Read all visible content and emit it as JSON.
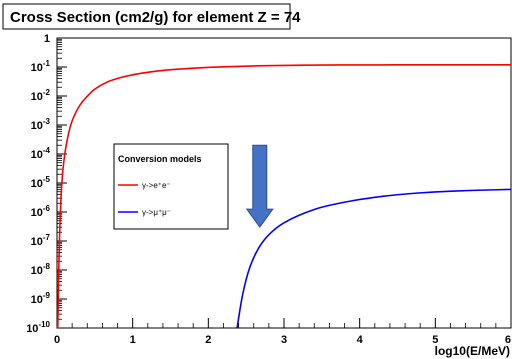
{
  "chart_data": {
    "type": "line",
    "title": "Cross Section (cm2/g) for element Z = 74",
    "xlabel": "log10(E/MeV)",
    "ylabel": "",
    "xlim": [
      0,
      6
    ],
    "ylim_log10": [
      -10,
      0
    ],
    "yscale": "log",
    "grid": false,
    "x_tick_labels": [
      "0",
      "1",
      "2",
      "3",
      "4",
      "5",
      "6"
    ],
    "y_tick_labels": [
      {
        "base": "1",
        "exp": ""
      },
      {
        "base": "10",
        "exp": "-1"
      },
      {
        "base": "10",
        "exp": "-2"
      },
      {
        "base": "10",
        "exp": "-3"
      },
      {
        "base": "10",
        "exp": "-4"
      },
      {
        "base": "10",
        "exp": "-5"
      },
      {
        "base": "10",
        "exp": "-6"
      },
      {
        "base": "10",
        "exp": "-7"
      },
      {
        "base": "10",
        "exp": "-8"
      },
      {
        "base": "10",
        "exp": "-9"
      },
      {
        "base": "10",
        "exp": "-10"
      }
    ],
    "legend": {
      "title": "Conversion models",
      "placement": "center-left",
      "entries": [
        {
          "label": "γ->e⁺e⁻",
          "color": "#ff0000"
        },
        {
          "label": "γ->μ⁺μ⁻",
          "color": "#0000ff"
        }
      ]
    },
    "series": [
      {
        "color": "#ff0000",
        "x": [
          0.01,
          0.03,
          0.06,
          0.1,
          0.15,
          0.2,
          0.3,
          0.4,
          0.5,
          0.7,
          1.0,
          1.3,
          1.6,
          2.0,
          2.5,
          3.0,
          3.5,
          4.0,
          5.0,
          6.0
        ],
        "y": [
          1e-10,
          1e-07,
          1e-05,
          0.0001,
          0.0005,
          0.0015,
          0.005,
          0.01,
          0.018,
          0.035,
          0.055,
          0.072,
          0.085,
          0.098,
          0.108,
          0.114,
          0.117,
          0.118,
          0.119,
          0.119
        ]
      },
      {
        "color": "#0000ff",
        "x": [
          2.38,
          2.45,
          2.55,
          2.7,
          2.9,
          3.1,
          3.3,
          3.5,
          3.8,
          4.1,
          4.5,
          5.0,
          5.5,
          6.0
        ],
        "y": [
          1e-10,
          1.5e-09,
          1.5e-08,
          9e-08,
          3e-07,
          6e-07,
          1e-06,
          1.5e-06,
          2.2e-06,
          3e-06,
          4e-06,
          5e-06,
          5.6e-06,
          6e-06
        ]
      }
    ],
    "annotation": {
      "shape": "down-arrow",
      "color": "#4472c4",
      "x": 2.68,
      "y_top": 0.0002,
      "y_bottom": 3e-07
    }
  }
}
